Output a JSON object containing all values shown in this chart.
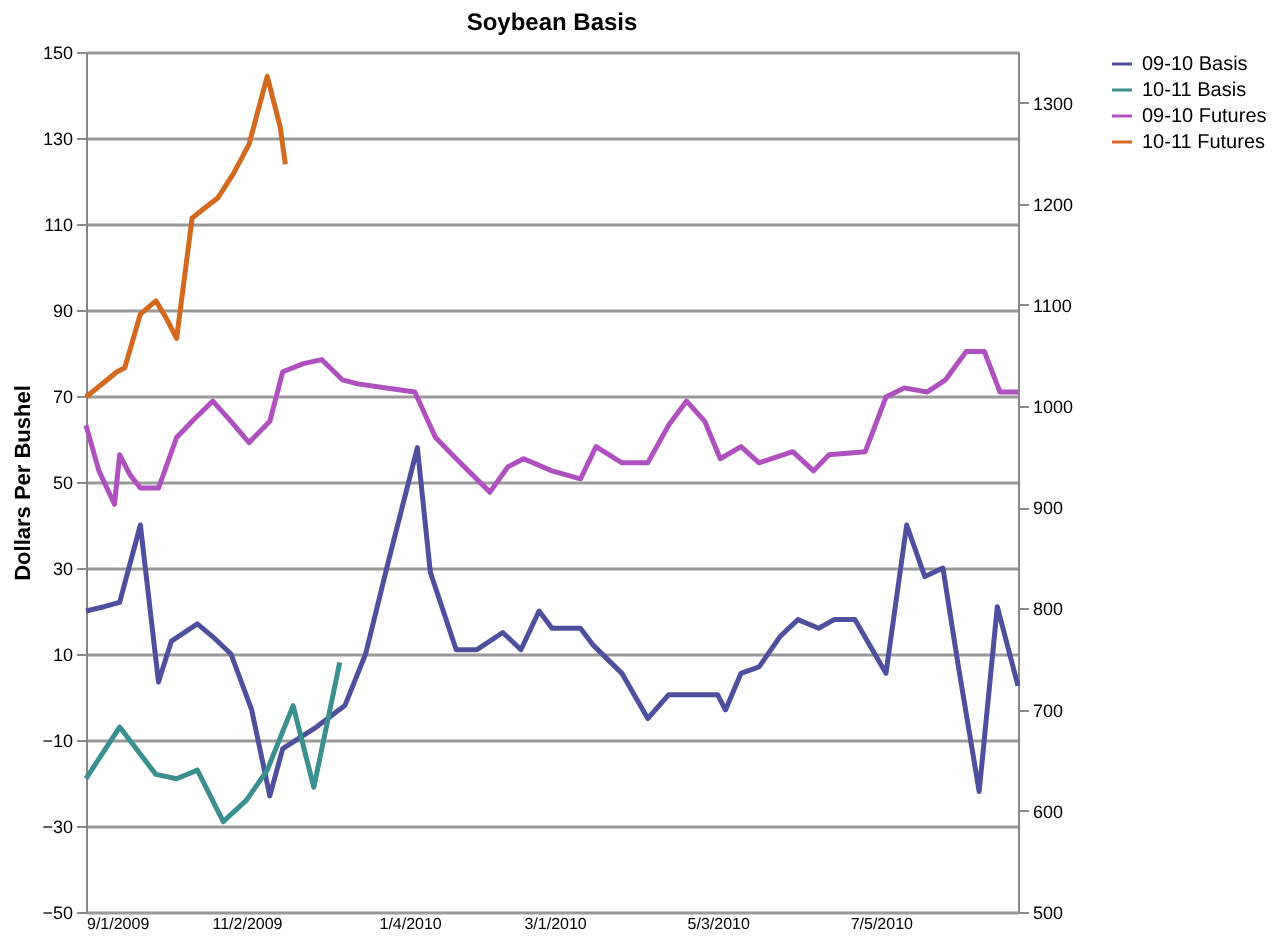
{
  "chart_data": {
    "type": "line",
    "title": "Soybean Basis",
    "ylabel": "Dollars Per Bushel",
    "xlim": [
      "2009-09-01",
      "2010-08-27"
    ],
    "xticks": [
      {
        "value": "2009-09-01",
        "label": "9/1/2009"
      },
      {
        "value": "2009-11-02",
        "label": "11/2/2009"
      },
      {
        "value": "2010-01-04",
        "label": "1/4/2010"
      },
      {
        "value": "2010-03-01",
        "label": "3/1/2010"
      },
      {
        "value": "2010-05-03",
        "label": "5/3/2010"
      },
      {
        "value": "2010-07-05",
        "label": "7/5/2010"
      }
    ],
    "ylim": [
      -50,
      150
    ],
    "yticks": [
      -50,
      -30,
      -10,
      10,
      30,
      50,
      70,
      90,
      110,
      130,
      150
    ],
    "y2lim": [
      500,
      1350
    ],
    "y2ticks": [
      500,
      600,
      700,
      800,
      900,
      1000,
      1100,
      1200,
      1300
    ],
    "grid": "y",
    "legend": "right",
    "marker": "none",
    "line_style": "solid",
    "series": [
      {
        "name": "09-10 Basis",
        "color": "#4f4f9f",
        "x": [
          "2009-09-01",
          "2009-09-08",
          "2009-09-14",
          "2009-09-22",
          "2009-09-29",
          "2009-10-04",
          "2009-10-14",
          "2009-10-20",
          "2009-10-27",
          "2009-11-04",
          "2009-11-11",
          "2009-11-16",
          "2009-11-29",
          "2009-12-10",
          "2009-12-18",
          "2009-12-27",
          "2010-01-07",
          "2010-01-12",
          "2010-01-22",
          "2010-01-30",
          "2010-02-09",
          "2010-02-16",
          "2010-02-23",
          "2010-02-28",
          "2010-03-11",
          "2010-03-16",
          "2010-03-27",
          "2010-04-06",
          "2010-04-14",
          "2010-04-22",
          "2010-05-03",
          "2010-05-06",
          "2010-05-12",
          "2010-05-19",
          "2010-05-27",
          "2010-06-03",
          "2010-06-11",
          "2010-06-17",
          "2010-06-25",
          "2010-07-07",
          "2010-07-15",
          "2010-07-22",
          "2010-07-29",
          "2010-08-04",
          "2010-08-12",
          "2010-08-19",
          "2010-08-27"
        ],
        "values": [
          20,
          21,
          22,
          40,
          3.5,
          13,
          17,
          14,
          10,
          -3,
          -23,
          -12,
          -7,
          -2,
          10,
          32,
          58,
          29,
          11,
          11,
          15,
          11,
          20,
          16,
          16,
          12,
          5.5,
          -5,
          0.5,
          0.5,
          0.5,
          -3,
          5.5,
          7,
          14,
          18,
          16,
          18,
          18,
          5.5,
          40,
          28,
          30,
          7,
          -22,
          21,
          2.6
        ]
      },
      {
        "name": "10-11 Basis",
        "color": "#3b8f8f",
        "x": [
          "2009-09-01",
          "2009-09-14",
          "2009-09-28",
          "2009-10-06",
          "2009-10-14",
          "2009-10-24",
          "2009-11-02",
          "2009-11-10",
          "2009-11-20",
          "2009-11-28",
          "2009-12-08"
        ],
        "values": [
          -19,
          -7,
          -18,
          -19,
          -17,
          -29,
          -24,
          -17,
          -2,
          -21,
          8
        ]
      },
      {
        "name": "09-10 Futures",
        "color": "#b04fc0",
        "axis": "y2",
        "x": [
          "2009-09-01",
          "2009-09-06",
          "2009-09-12",
          "2009-09-14",
          "2009-09-18",
          "2009-09-22",
          "2009-09-29",
          "2009-10-06",
          "2009-10-12",
          "2009-10-20",
          "2009-10-27",
          "2009-11-03",
          "2009-11-11",
          "2009-11-16",
          "2009-11-24",
          "2009-12-01",
          "2009-12-09",
          "2009-12-15",
          "2009-12-26",
          "2010-01-06",
          "2010-01-14",
          "2010-01-22",
          "2010-02-04",
          "2010-02-11",
          "2010-02-17",
          "2010-02-28",
          "2010-03-11",
          "2010-03-17",
          "2010-03-27",
          "2010-04-06",
          "2010-04-14",
          "2010-04-21",
          "2010-04-28",
          "2010-05-04",
          "2010-05-12",
          "2010-05-19",
          "2010-06-01",
          "2010-06-09",
          "2010-06-15",
          "2010-06-29",
          "2010-07-07",
          "2010-07-14",
          "2010-07-23",
          "2010-07-30",
          "2010-08-07",
          "2010-08-14",
          "2010-08-20",
          "2010-08-27"
        ],
        "values": [
          981,
          936,
          903,
          952,
          932,
          919,
          919,
          969,
          985,
          1005,
          985,
          964,
          985,
          1034,
          1042,
          1046,
          1026,
          1022,
          1018,
          1014,
          969,
          948,
          915,
          940,
          948,
          936,
          928,
          960,
          944,
          944,
          981,
          1005,
          985,
          948,
          960,
          944,
          955,
          936,
          952,
          955,
          1009,
          1018,
          1014,
          1026,
          1054,
          1054,
          1014,
          1014
        ]
      },
      {
        "name": "10-11 Futures",
        "color": "#d2691e",
        "axis": "y2",
        "x": [
          "2009-09-01",
          "2009-09-13",
          "2009-09-16",
          "2009-09-22",
          "2009-09-28",
          "2009-10-02",
          "2009-10-06",
          "2009-10-12",
          "2009-10-16",
          "2009-10-22",
          "2009-10-28",
          "2009-11-03",
          "2009-11-10",
          "2009-11-15",
          "2009-11-17"
        ],
        "values": [
          1009,
          1034,
          1038,
          1091,
          1104,
          1087,
          1067,
          1186,
          1194,
          1206,
          1230,
          1259,
          1326,
          1276,
          1239
        ]
      }
    ]
  }
}
